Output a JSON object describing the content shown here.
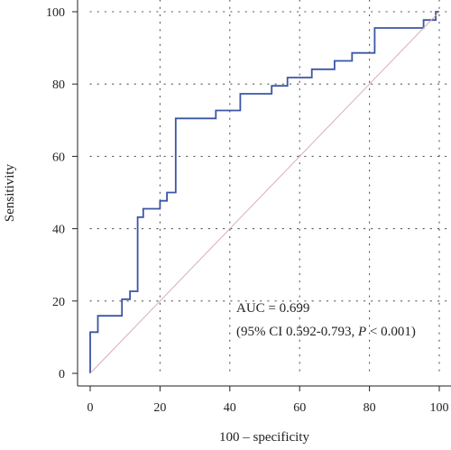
{
  "chart_data": {
    "type": "line",
    "title": "",
    "xlabel": "100 – specificity",
    "ylabel": "Sensitivity",
    "xlim": [
      0,
      100
    ],
    "ylim": [
      0,
      100
    ],
    "xticks": [
      0,
      20,
      40,
      60,
      80,
      100
    ],
    "yticks": [
      0,
      20,
      40,
      60,
      80,
      100
    ],
    "grid": "dotted",
    "series": [
      {
        "color": "#3a56a5",
        "step": true,
        "points": [
          [
            0,
            0
          ],
          [
            0,
            11.4
          ],
          [
            2.2,
            11.4
          ],
          [
            2.2,
            15.9
          ],
          [
            9.1,
            15.9
          ],
          [
            9.1,
            20.5
          ],
          [
            11.4,
            20.5
          ],
          [
            11.4,
            22.7
          ],
          [
            13.6,
            22.7
          ],
          [
            13.6,
            43.2
          ],
          [
            15.2,
            43.2
          ],
          [
            15.2,
            45.5
          ],
          [
            20,
            45.5
          ],
          [
            20,
            47.7
          ],
          [
            22,
            47.7
          ],
          [
            22,
            50
          ],
          [
            24.5,
            50
          ],
          [
            24.5,
            70.5
          ],
          [
            36,
            70.5
          ],
          [
            36,
            72.7
          ],
          [
            43,
            72.7
          ],
          [
            43,
            77.3
          ],
          [
            52,
            77.3
          ],
          [
            52,
            79.5
          ],
          [
            56.5,
            79.5
          ],
          [
            56.5,
            81.8
          ],
          [
            63.5,
            81.8
          ],
          [
            63.5,
            84.1
          ],
          [
            70,
            84.1
          ],
          [
            70,
            86.4
          ],
          [
            75,
            86.4
          ],
          [
            75,
            88.6
          ],
          [
            81.5,
            88.6
          ],
          [
            81.5,
            95.5
          ],
          [
            95.5,
            95.5
          ],
          [
            95.5,
            97.7
          ],
          [
            99,
            97.7
          ],
          [
            99,
            100
          ],
          [
            100,
            100
          ]
        ]
      },
      {
        "role": "reference",
        "color": "#d8aeb3",
        "points": [
          [
            0,
            0
          ],
          [
            100,
            100
          ]
        ]
      }
    ],
    "annotation": {
      "line1": "AUC = 0.699",
      "line2_prefix": "(95% CI 0.592-0.793, ",
      "line2_p": "P",
      "line2_suffix": " < 0.001)"
    }
  }
}
